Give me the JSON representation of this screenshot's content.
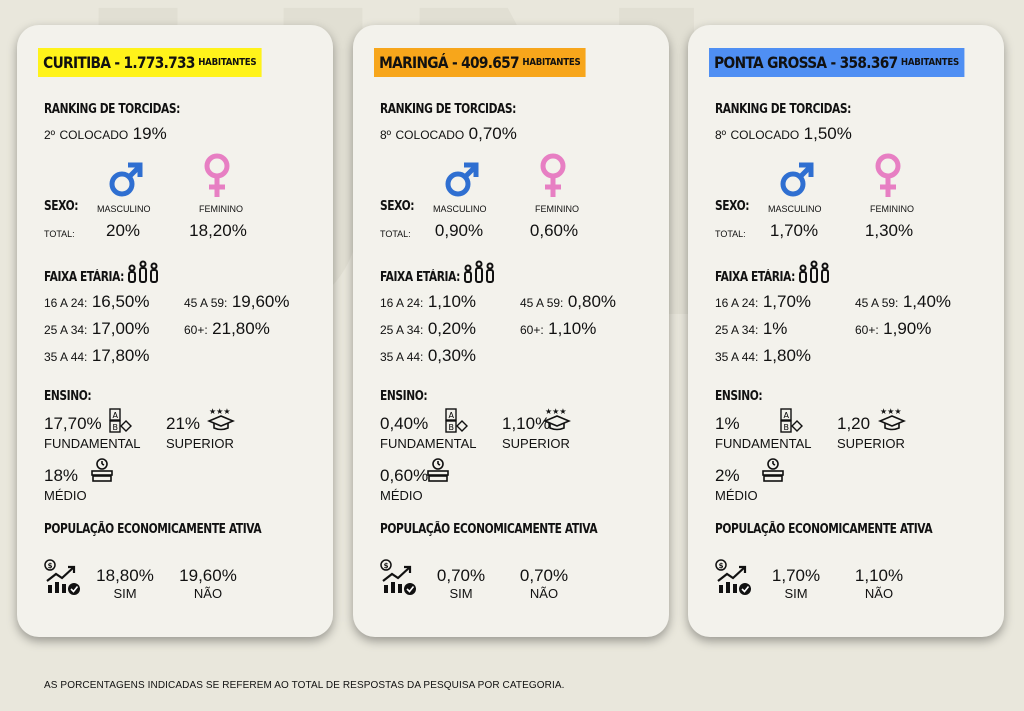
{
  "footer": "AS PORCENTAGENS INDICADAS SE REFEREM AO TOTAL DE RESPOSTAS DA PESQUISA POR CATEGORIA.",
  "colors": {
    "masculino": "#2f6fd1",
    "feminino": "#e77fc3"
  },
  "labels": {
    "ranking": "RANKING DE TORCIDAS:",
    "colocado_suffix": "COLOCADO",
    "sexo": "SEXO:",
    "total": "TOTAL:",
    "masculino": "MASCULINO",
    "feminino": "FEMININO",
    "faixa": "FAIXA ETÁRIA:",
    "age_16_24": "16 A 24:",
    "age_25_34": "25 A 34:",
    "age_35_44": "35 A 44:",
    "age_45_59": "45 A 59:",
    "age_60": "60+:",
    "ensino": "ENSINO:",
    "fundamental": "FUNDAMENTAL",
    "superior": "SUPERIOR",
    "medio": "MÉDIO",
    "pea": "POPULAÇÃO ECONOMICAMENTE ATIVA",
    "sim": "SIM",
    "nao": "NÃO",
    "habitantes": "HABITANTES"
  },
  "cities": [
    {
      "name": "CURITIBA - 1.773.733",
      "color": "#fff31a",
      "rank_position": "2º",
      "rank_value": "19%",
      "masculino": "20%",
      "feminino": "18,20%",
      "age_16_24": "16,50%",
      "age_25_34": "17,00%",
      "age_35_44": "17,80%",
      "age_45_59": "19,60%",
      "age_60": "21,80%",
      "fundamental": "17,70%",
      "superior": "21%",
      "medio": "18%",
      "pea_sim": "18,80%",
      "pea_nao": "19,60%"
    },
    {
      "name": "MARINGÁ - 409.657",
      "color": "#f7a61b",
      "rank_position": "8º",
      "rank_value": "0,70%",
      "masculino": "0,90%",
      "feminino": "0,60%",
      "age_16_24": "1,10%",
      "age_25_34": "0,20%",
      "age_35_44": "0,30%",
      "age_45_59": "0,80%",
      "age_60": "1,10%",
      "fundamental": "0,40%",
      "superior": "1,10%",
      "medio": "0,60%",
      "pea_sim": "0,70%",
      "pea_nao": "0,70%"
    },
    {
      "name": "PONTA GROSSA - 358.367",
      "color": "#4f8ff3",
      "rank_position": "8º",
      "rank_value": "1,50%",
      "masculino": "1,70%",
      "feminino": "1,30%",
      "age_16_24": "1,70%",
      "age_25_34": "1%",
      "age_35_44": "1,80%",
      "age_45_59": "1,40%",
      "age_60": "1,90%",
      "fundamental": "1%",
      "superior": "1,20",
      "medio": "2%",
      "pea_sim": "1,70%",
      "pea_nao": "1,10%"
    }
  ]
}
